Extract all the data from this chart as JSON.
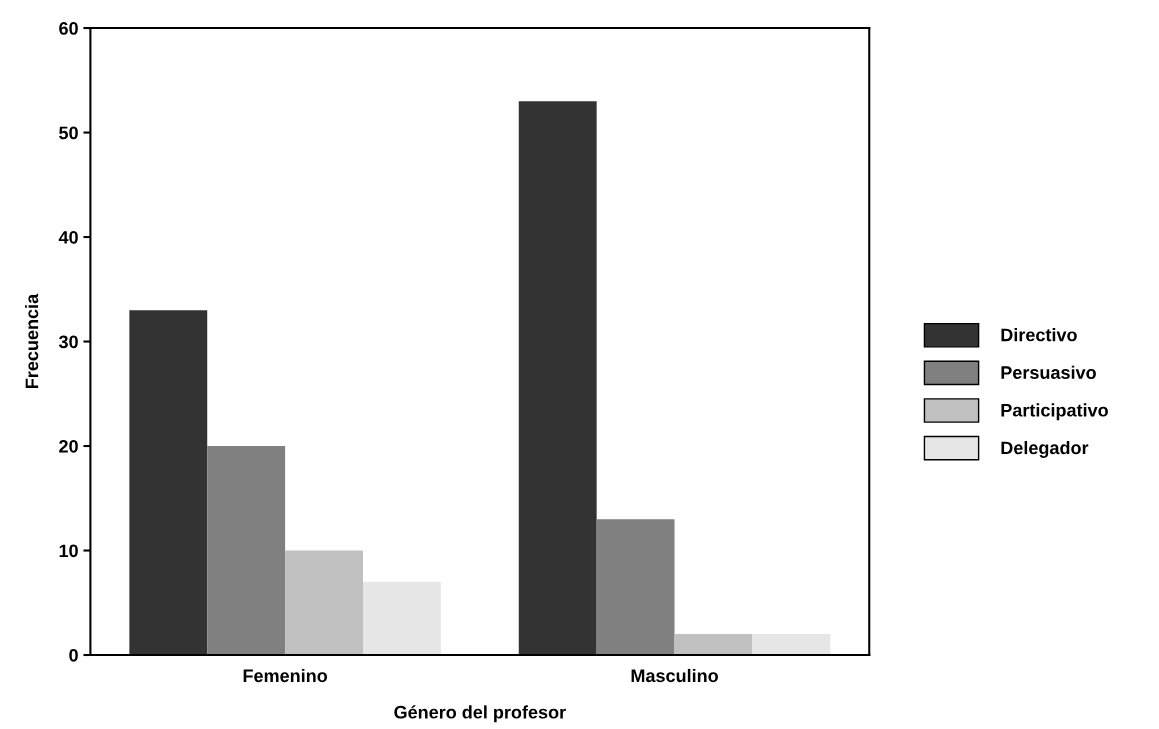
{
  "chart_data": {
    "type": "bar",
    "xlabel": "Género del profesor",
    "ylabel": "Frecuencia",
    "categories": [
      "Femenino",
      "Masculino"
    ],
    "series": [
      {
        "name": "Directivo",
        "color": "#333333",
        "values": [
          33,
          53
        ]
      },
      {
        "name": "Persuasivo",
        "color": "#808080",
        "values": [
          20,
          13
        ]
      },
      {
        "name": "Participativo",
        "color": "#c0c0c0",
        "values": [
          10,
          2
        ]
      },
      {
        "name": "Delegador",
        "color": "#e6e6e6",
        "values": [
          7,
          2
        ]
      }
    ],
    "ylim": [
      0,
      60
    ],
    "yticks": [
      0,
      10,
      20,
      30,
      40,
      50,
      60
    ],
    "grid": false,
    "legend": "right"
  }
}
